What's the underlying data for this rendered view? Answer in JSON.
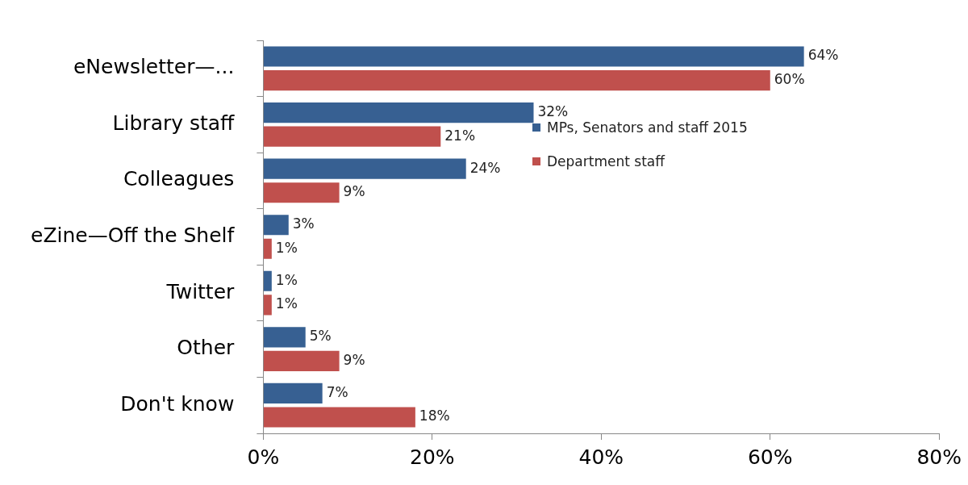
{
  "chart_data": {
    "type": "bar",
    "orientation": "horizontal",
    "categories": [
      "eNewsletter—...",
      "Library staff",
      "Colleagues",
      "eZine—Off the Shelf",
      "Twitter",
      "Other",
      "Don't know"
    ],
    "series": [
      {
        "name": "MPs, Senators and staff 2015",
        "color": "#376092",
        "values": [
          64,
          32,
          24,
          3,
          1,
          5,
          7
        ],
        "value_labels": [
          "64%",
          "32%",
          "24%",
          "3%",
          "1%",
          "5%",
          "7%"
        ]
      },
      {
        "name": "Department staff",
        "color": "#c0504d",
        "values": [
          60,
          21,
          9,
          1,
          1,
          9,
          18
        ],
        "value_labels": [
          "60%",
          "21%",
          "9%",
          "1%",
          "1%",
          "9%",
          "18%"
        ]
      }
    ],
    "xlim": [
      0,
      80
    ],
    "xticks": [
      {
        "value": 0,
        "label": "0%"
      },
      {
        "value": 20,
        "label": "20%"
      },
      {
        "value": 40,
        "label": "40%"
      },
      {
        "value": 60,
        "label": "60%"
      },
      {
        "value": 80,
        "label": "80%"
      }
    ],
    "grid": false,
    "legend": "top"
  }
}
